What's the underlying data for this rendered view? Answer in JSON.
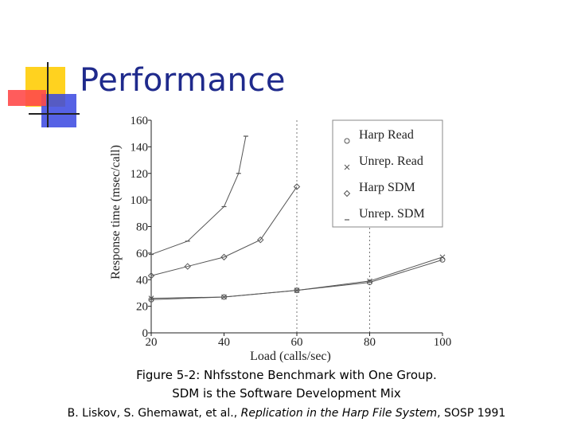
{
  "slide": {
    "title": "Performance",
    "caption_line1": "Figure 5-2: Nhfsstone Benchmark with One Group.",
    "caption_line2": "SDM is the Software Development Mix",
    "citation_authors": "B. Liskov, S. Ghemawat, et al., ",
    "citation_title": "Replication in the Harp File System",
    "citation_venue": ", SOSP 1991"
  },
  "colors": {
    "title": "#1f2a8c",
    "logo_yellow": "#ffd21f",
    "logo_red": "#ff3b3b",
    "logo_blue": "#2c3bd6",
    "series": "#555555"
  },
  "chart_data": {
    "type": "line",
    "title": "",
    "xlabel": "Load (calls/sec)",
    "ylabel": "Response time (msec/call)",
    "xlim": [
      20,
      100
    ],
    "ylim": [
      0,
      160
    ],
    "x_ticks": [
      20,
      40,
      60,
      80,
      100
    ],
    "y_ticks": [
      0,
      20,
      40,
      60,
      80,
      100,
      120,
      140,
      160
    ],
    "grid": "dotted at x=60 and x=80",
    "legend_position": "top-right",
    "series": [
      {
        "name": "Harp Read",
        "marker": "circle",
        "x": [
          20,
          40,
          60,
          80,
          100
        ],
        "y": [
          25,
          27,
          32,
          38,
          55
        ]
      },
      {
        "name": "Unrep. Read",
        "marker": "x",
        "x": [
          20,
          40,
          60,
          80,
          100
        ],
        "y": [
          26,
          27,
          32,
          39,
          57
        ]
      },
      {
        "name": "Harp SDM",
        "marker": "diamond",
        "x": [
          20,
          30,
          40,
          50,
          60
        ],
        "y": [
          43,
          50,
          57,
          70,
          110
        ]
      },
      {
        "name": "Unrep. SDM",
        "marker": "dash",
        "x": [
          20,
          30,
          40,
          44,
          46
        ],
        "y": [
          59,
          69,
          95,
          120,
          148
        ]
      }
    ]
  }
}
